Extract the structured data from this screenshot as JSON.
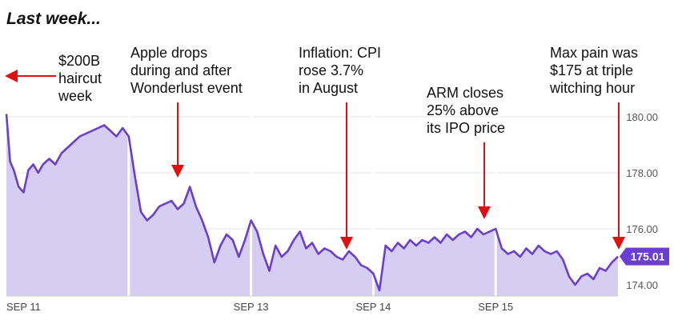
{
  "header": {
    "title": "Last week..."
  },
  "colors": {
    "line": "#6a3fcf",
    "fill": "#d6cdf3",
    "arrow": "#e01010",
    "badge": "#6a3fcf"
  },
  "annotations": [
    {
      "lines": [
        "$200B",
        "haircut",
        "week"
      ],
      "arrow": "left"
    },
    {
      "lines": [
        "Apple drops",
        "during and after",
        "Wonderlust event"
      ],
      "arrow": "down"
    },
    {
      "lines": [
        "Inflation: CPI",
        "rose 3.7%",
        "in August"
      ],
      "arrow": "down"
    },
    {
      "lines": [
        "ARM closes",
        "25% above",
        "its IPO price"
      ],
      "arrow": "down"
    },
    {
      "lines": [
        "Max pain was",
        "$175 at triple",
        "witching hour"
      ],
      "arrow": "down"
    }
  ],
  "chart_data": {
    "type": "area",
    "last_value_label": "175.01",
    "ylim": [
      173.6,
      180.4
    ],
    "yticks": [
      "180.00",
      "178.00",
      "176.00",
      "174.00"
    ],
    "ytick_values": [
      180,
      178,
      176,
      174
    ],
    "xticks": [
      "SEP 11",
      "SEP 13",
      "SEP 14",
      "SEP 15"
    ],
    "xtick_positions": [
      0,
      2.0,
      3.0,
      4.0
    ],
    "x_range": [
      0,
      5.0
    ],
    "grid": true,
    "series": [
      {
        "x": [
          0.0,
          0.03,
          0.06,
          0.1,
          0.14,
          0.18,
          0.22,
          0.26,
          0.3,
          0.35,
          0.4,
          0.45,
          0.5,
          0.55,
          0.6,
          0.65,
          0.7,
          0.75,
          0.8,
          0.85,
          0.9,
          0.95,
          1.0,
          1.0,
          1.05,
          1.1,
          1.15,
          1.2,
          1.25,
          1.3,
          1.35,
          1.4,
          1.45,
          1.5,
          1.55,
          1.6,
          1.65,
          1.7,
          1.75,
          1.8,
          1.85,
          1.9,
          1.95,
          2.0,
          2.0,
          2.05,
          2.1,
          2.15,
          2.2,
          2.25,
          2.3,
          2.35,
          2.4,
          2.45,
          2.5,
          2.55,
          2.6,
          2.65,
          2.7,
          2.75,
          2.8,
          2.85,
          2.9,
          2.95,
          3.0,
          3.0,
          3.05,
          3.1,
          3.15,
          3.2,
          3.25,
          3.3,
          3.35,
          3.4,
          3.45,
          3.5,
          3.55,
          3.6,
          3.65,
          3.7,
          3.75,
          3.8,
          3.85,
          3.9,
          3.95,
          4.0,
          4.0,
          4.05,
          4.1,
          4.15,
          4.2,
          4.25,
          4.3,
          4.35,
          4.4,
          4.45,
          4.5,
          4.55,
          4.6,
          4.65,
          4.7,
          4.75,
          4.8,
          4.85,
          4.9,
          4.95,
          5.0
        ],
        "y": [
          180.1,
          178.4,
          178.1,
          177.5,
          177.3,
          178.1,
          178.3,
          178.0,
          178.3,
          178.5,
          178.3,
          178.7,
          178.9,
          179.1,
          179.3,
          179.4,
          179.5,
          179.6,
          179.7,
          179.5,
          179.3,
          179.6,
          179.3,
          179.3,
          177.9,
          176.6,
          176.3,
          176.5,
          176.8,
          176.9,
          177.0,
          176.7,
          176.9,
          177.5,
          176.8,
          176.3,
          175.7,
          174.8,
          175.4,
          175.8,
          175.6,
          175.0,
          175.6,
          176.3,
          176.3,
          175.9,
          175.1,
          174.5,
          175.4,
          175.0,
          175.2,
          175.6,
          175.9,
          175.3,
          175.5,
          175.1,
          175.3,
          175.2,
          175.0,
          174.9,
          175.2,
          175.0,
          174.7,
          174.6,
          174.4,
          174.4,
          173.8,
          175.4,
          175.2,
          175.5,
          175.3,
          175.6,
          175.4,
          175.6,
          175.5,
          175.7,
          175.5,
          175.8,
          175.6,
          175.8,
          175.9,
          175.7,
          176.0,
          175.8,
          175.9,
          176.0,
          176.0,
          175.3,
          175.1,
          175.2,
          175.0,
          175.3,
          175.1,
          175.4,
          175.2,
          175.1,
          175.2,
          174.9,
          174.3,
          174.0,
          174.3,
          174.4,
          174.2,
          174.6,
          174.5,
          174.8,
          175.01
        ]
      }
    ]
  }
}
